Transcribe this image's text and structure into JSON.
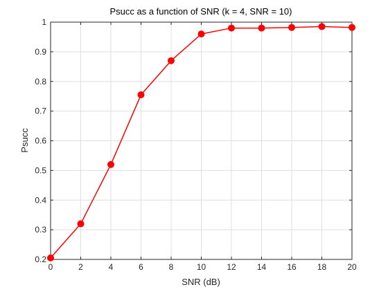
{
  "chart_data": {
    "type": "line",
    "title": "Psucc as a function of SNR (k = 4, SNR = 10)",
    "xlabel": "SNR (dB)",
    "ylabel": "Psucc",
    "xlim": [
      0,
      20
    ],
    "ylim": [
      0.2,
      1
    ],
    "xticks": [
      0,
      2,
      4,
      6,
      8,
      10,
      12,
      14,
      16,
      18,
      20
    ],
    "yticks": [
      0.2,
      0.3,
      0.4,
      0.5,
      0.6,
      0.7,
      0.8,
      0.9,
      1
    ],
    "grid": true,
    "series": [
      {
        "x": [
          0,
          2,
          4,
          6,
          8,
          10,
          12,
          14,
          16,
          18,
          20
        ],
        "y": [
          0.205,
          0.32,
          0.52,
          0.755,
          0.87,
          0.96,
          0.98,
          0.98,
          0.982,
          0.985,
          0.982
        ],
        "color": "#ff0000",
        "marker": "circle"
      }
    ]
  }
}
